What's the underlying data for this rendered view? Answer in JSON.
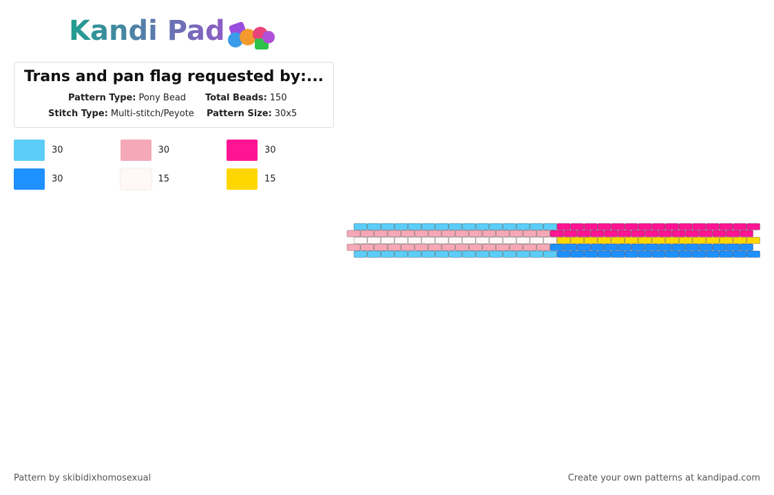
{
  "logo": "Kandi Pad",
  "title": "Trans and pan flag requested by:...",
  "fields": [
    {
      "label": "Pattern Type:",
      "value": "Pony Bead"
    },
    {
      "label": "Total Beads:",
      "value": "150"
    },
    {
      "label": "Stitch Type:",
      "value": "Multi-stitch/Peyote"
    },
    {
      "label": "Pattern Size:",
      "value": "30x5"
    }
  ],
  "palette": [
    {
      "color": "#5bcdf8",
      "count": 30
    },
    {
      "color": "#f5a9b8",
      "count": 30
    },
    {
      "color": "#ff1493",
      "count": 30
    },
    {
      "color": "#1e90ff",
      "count": 30
    },
    {
      "color": "#fff8f6",
      "count": 15
    },
    {
      "color": "#ffd700",
      "count": 15
    }
  ],
  "pattern": [
    [
      0,
      0,
      0,
      0,
      0,
      0,
      0,
      0,
      0,
      0,
      0,
      0,
      0,
      0,
      0,
      2,
      2,
      2,
      2,
      2,
      2,
      2,
      2,
      2,
      2,
      2,
      2,
      2,
      2,
      2
    ],
    [
      1,
      1,
      1,
      1,
      1,
      1,
      1,
      1,
      1,
      1,
      1,
      1,
      1,
      1,
      1,
      2,
      2,
      2,
      2,
      2,
      2,
      2,
      2,
      2,
      2,
      2,
      2,
      2,
      2,
      2
    ],
    [
      4,
      4,
      4,
      4,
      4,
      4,
      4,
      4,
      4,
      4,
      4,
      4,
      4,
      4,
      4,
      5,
      5,
      5,
      5,
      5,
      5,
      5,
      5,
      5,
      5,
      5,
      5,
      5,
      5,
      5
    ],
    [
      1,
      1,
      1,
      1,
      1,
      1,
      1,
      1,
      1,
      1,
      1,
      1,
      1,
      1,
      1,
      3,
      3,
      3,
      3,
      3,
      3,
      3,
      3,
      3,
      3,
      3,
      3,
      3,
      3,
      3
    ],
    [
      0,
      0,
      0,
      0,
      0,
      0,
      0,
      0,
      0,
      0,
      0,
      0,
      0,
      0,
      0,
      3,
      3,
      3,
      3,
      3,
      3,
      3,
      3,
      3,
      3,
      3,
      3,
      3,
      3,
      3
    ]
  ],
  "footer": {
    "left": "Pattern by skibidixhomosexual",
    "right": "Create your own patterns at kandipad.com"
  }
}
